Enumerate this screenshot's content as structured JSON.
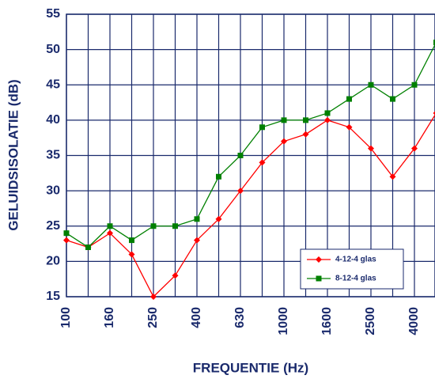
{
  "chart_data": {
    "type": "line",
    "xlabel": "FREQUENTIE (Hz)",
    "ylabel": "GELUIDSISOLATIE (dB)",
    "categories": [
      "100",
      null,
      "160",
      null,
      "250",
      null,
      "400",
      null,
      "630",
      null,
      "1000",
      null,
      "1600",
      null,
      "2500",
      null,
      "4000",
      null
    ],
    "series": [
      {
        "name": "4-12-4 glas",
        "color": "#ff0000",
        "marker": "diamond",
        "values": [
          23,
          22,
          24,
          21,
          15,
          18,
          23,
          26,
          30,
          34,
          37,
          38,
          40,
          39,
          36,
          32,
          36,
          41
        ]
      },
      {
        "name": "8-12-4 glas",
        "color": "#008000",
        "marker": "square",
        "values": [
          24,
          22,
          25,
          23,
          25,
          25,
          26,
          32,
          35,
          39,
          40,
          40,
          41,
          43,
          45,
          43,
          45,
          51
        ]
      }
    ],
    "ylim": [
      15,
      55
    ],
    "yticks": [
      15,
      20,
      25,
      30,
      35,
      40,
      45,
      50,
      55
    ],
    "grid": true,
    "legend": "lower right"
  }
}
